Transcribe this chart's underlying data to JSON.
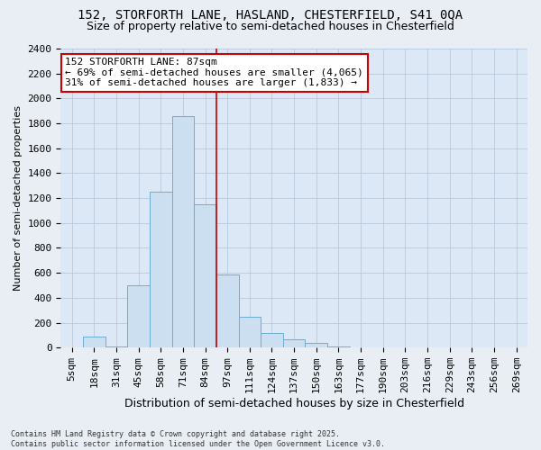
{
  "title1": "152, STORFORTH LANE, HASLAND, CHESTERFIELD, S41 0QA",
  "title2": "Size of property relative to semi-detached houses in Chesterfield",
  "xlabel": "Distribution of semi-detached houses by size in Chesterfield",
  "ylabel": "Number of semi-detached properties",
  "bin_labels": [
    "5sqm",
    "18sqm",
    "31sqm",
    "45sqm",
    "58sqm",
    "71sqm",
    "84sqm",
    "97sqm",
    "111sqm",
    "124sqm",
    "137sqm",
    "150sqm",
    "163sqm",
    "177sqm",
    "190sqm",
    "203sqm",
    "216sqm",
    "229sqm",
    "243sqm",
    "256sqm",
    "269sqm"
  ],
  "bar_values": [
    5,
    85,
    10,
    500,
    1250,
    1860,
    1150,
    590,
    245,
    115,
    65,
    35,
    10,
    5,
    0,
    0,
    0,
    0,
    0,
    0,
    0
  ],
  "property_bin_index": 6,
  "bar_color": "#ccdff0",
  "bar_edge_color": "#6baed6",
  "vline_color": "#cc0000",
  "annotation_line1": "152 STORFORTH LANE: 87sqm",
  "annotation_line2": "← 69% of semi-detached houses are smaller (4,065)",
  "annotation_line3": "31% of semi-detached houses are larger (1,833) →",
  "footer_text": "Contains HM Land Registry data © Crown copyright and database right 2025.\nContains public sector information licensed under the Open Government Licence v3.0.",
  "bg_color": "#e8eef4",
  "plot_bg_color": "#dce8f5",
  "grid_color": "#b0c4d8",
  "ylim": [
    0,
    2400
  ],
  "yticks": [
    0,
    200,
    400,
    600,
    800,
    1000,
    1200,
    1400,
    1600,
    1800,
    2000,
    2200,
    2400
  ],
  "title1_fontsize": 10,
  "title2_fontsize": 9,
  "xlabel_fontsize": 9,
  "ylabel_fontsize": 8,
  "tick_fontsize": 8,
  "annot_fontsize": 8
}
